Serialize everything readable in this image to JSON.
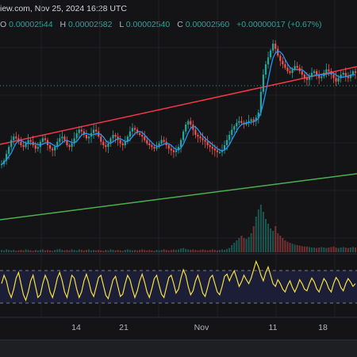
{
  "header": {
    "source_prefix": "iew.com, ",
    "datetime": "Nov 25, 2024 16:28 UTC"
  },
  "ohlc": {
    "open_label": "O",
    "open": "0.00002544",
    "high_label": "H",
    "high": "0.00002582",
    "low_label": "L",
    "low": "0.00002540",
    "close_label": "C",
    "close": "0.00002560",
    "change": "+0.00000017 (+0.67%)"
  },
  "colors": {
    "background": "#141416",
    "up_candle": "#26a69a",
    "down_candle": "#ef5350",
    "moving_average": "#2196f3",
    "upper_trendline": "#f23645",
    "lower_trendline": "#4caf50",
    "oscillator": "#f5e042",
    "oscillator_band_fill": "#1c1f3a",
    "dotted_price_line": "#26a69a"
  },
  "chart_data": {
    "type": "line",
    "description_type": "candlestick price chart with volume histogram and oscillator sub-pane",
    "x_tick_labels": [
      "14",
      "21",
      "Nov",
      "11",
      "18"
    ],
    "y_axis_visible": false,
    "grid": true,
    "price_shape": [
      0.3,
      0.32,
      0.36,
      0.4,
      0.44,
      0.46,
      0.45,
      0.43,
      0.41,
      0.4,
      0.42,
      0.44,
      0.43,
      0.41,
      0.39,
      0.4,
      0.43,
      0.45,
      0.44,
      0.41,
      0.39,
      0.38,
      0.4,
      0.43,
      0.45,
      0.46,
      0.44,
      0.41,
      0.4,
      0.42,
      0.45,
      0.48,
      0.5,
      0.49,
      0.47,
      0.45,
      0.46,
      0.48,
      0.5,
      0.49,
      0.46,
      0.43,
      0.41,
      0.4,
      0.42,
      0.45,
      0.47,
      0.46,
      0.44,
      0.42,
      0.41,
      0.43,
      0.46,
      0.49,
      0.51,
      0.5,
      0.48,
      0.47,
      0.46,
      0.44,
      0.42,
      0.41,
      0.4,
      0.39,
      0.4,
      0.42,
      0.44,
      0.43,
      0.41,
      0.39,
      0.38,
      0.37,
      0.38,
      0.4,
      0.44,
      0.49,
      0.53,
      0.55,
      0.53,
      0.5,
      0.47,
      0.46,
      0.45,
      0.44,
      0.43,
      0.41,
      0.4,
      0.39,
      0.38,
      0.37,
      0.37,
      0.38,
      0.41,
      0.44,
      0.47,
      0.5,
      0.52,
      0.54,
      0.55,
      0.54,
      0.53,
      0.54,
      0.55,
      0.56,
      0.55,
      0.57,
      0.6,
      0.72,
      0.82,
      0.88,
      0.92,
      0.96,
      1.0,
      0.97,
      0.93,
      0.9,
      0.88,
      0.86,
      0.84,
      0.83,
      0.85,
      0.87,
      0.86,
      0.84,
      0.82,
      0.8,
      0.79,
      0.81,
      0.83,
      0.84,
      0.82,
      0.8,
      0.81,
      0.83,
      0.85,
      0.84,
      0.82,
      0.8,
      0.78,
      0.8,
      0.82,
      0.83,
      0.81,
      0.8,
      0.82,
      0.84,
      0.83
    ],
    "volume_shape": [
      0.05,
      0.04,
      0.06,
      0.05,
      0.04,
      0.05,
      0.03,
      0.04,
      0.05,
      0.04,
      0.06,
      0.05,
      0.04,
      0.03,
      0.05,
      0.04,
      0.05,
      0.06,
      0.04,
      0.05,
      0.04,
      0.03,
      0.05,
      0.06,
      0.07,
      0.05,
      0.04,
      0.05,
      0.04,
      0.06,
      0.05,
      0.04,
      0.06,
      0.05,
      0.04,
      0.05,
      0.06,
      0.04,
      0.05,
      0.04,
      0.05,
      0.04,
      0.03,
      0.05,
      0.04,
      0.06,
      0.05,
      0.04,
      0.05,
      0.04,
      0.03,
      0.05,
      0.06,
      0.05,
      0.04,
      0.05,
      0.04,
      0.05,
      0.06,
      0.05,
      0.04,
      0.05,
      0.04,
      0.03,
      0.05,
      0.04,
      0.05,
      0.06,
      0.05,
      0.04,
      0.05,
      0.06,
      0.05,
      0.06,
      0.08,
      0.09,
      0.07,
      0.06,
      0.05,
      0.06,
      0.05,
      0.04,
      0.05,
      0.06,
      0.05,
      0.04,
      0.05,
      0.06,
      0.05,
      0.04,
      0.05,
      0.06,
      0.05,
      0.07,
      0.09,
      0.15,
      0.2,
      0.25,
      0.3,
      0.35,
      0.3,
      0.28,
      0.32,
      0.4,
      0.55,
      0.75,
      0.9,
      1.0,
      0.85,
      0.7,
      0.6,
      0.5,
      0.45,
      0.55,
      0.4,
      0.35,
      0.3,
      0.25,
      0.22,
      0.2,
      0.18,
      0.16,
      0.15,
      0.14,
      0.13,
      0.12,
      0.12,
      0.11,
      0.1,
      0.1,
      0.09,
      0.1,
      0.11,
      0.1,
      0.09,
      0.1,
      0.11,
      0.12,
      0.1,
      0.09,
      0.1,
      0.11,
      0.1,
      0.09,
      0.1,
      0.11,
      0.1
    ],
    "oscillator_shape": [
      0.55,
      0.7,
      0.6,
      0.4,
      0.3,
      0.45,
      0.65,
      0.75,
      0.55,
      0.35,
      0.25,
      0.4,
      0.6,
      0.7,
      0.5,
      0.3,
      0.35,
      0.55,
      0.7,
      0.6,
      0.4,
      0.3,
      0.45,
      0.65,
      0.75,
      0.6,
      0.4,
      0.3,
      0.5,
      0.7,
      0.65,
      0.45,
      0.3,
      0.4,
      0.6,
      0.72,
      0.58,
      0.4,
      0.32,
      0.48,
      0.66,
      0.7,
      0.52,
      0.34,
      0.28,
      0.45,
      0.62,
      0.68,
      0.5,
      0.32,
      0.36,
      0.55,
      0.7,
      0.62,
      0.44,
      0.3,
      0.42,
      0.6,
      0.72,
      0.58,
      0.4,
      0.3,
      0.46,
      0.64,
      0.7,
      0.52,
      0.36,
      0.3,
      0.48,
      0.66,
      0.7,
      0.55,
      0.38,
      0.45,
      0.65,
      0.8,
      0.7,
      0.5,
      0.35,
      0.42,
      0.6,
      0.7,
      0.55,
      0.38,
      0.32,
      0.48,
      0.65,
      0.7,
      0.55,
      0.4,
      0.35,
      0.5,
      0.68,
      0.72,
      0.6,
      0.7,
      0.78,
      0.65,
      0.5,
      0.58,
      0.7,
      0.62,
      0.55,
      0.65,
      0.8,
      0.95,
      0.85,
      0.7,
      0.6,
      0.75,
      0.85,
      0.7,
      0.55,
      0.5,
      0.62,
      0.55,
      0.45,
      0.4,
      0.52,
      0.6,
      0.48,
      0.4,
      0.5,
      0.62,
      0.55,
      0.45,
      0.42,
      0.55,
      0.65,
      0.58,
      0.46,
      0.4,
      0.52,
      0.64,
      0.58,
      0.46,
      0.4,
      0.55,
      0.66,
      0.6,
      0.48,
      0.42,
      0.55,
      0.64,
      0.58,
      0.5,
      0.55
    ]
  }
}
